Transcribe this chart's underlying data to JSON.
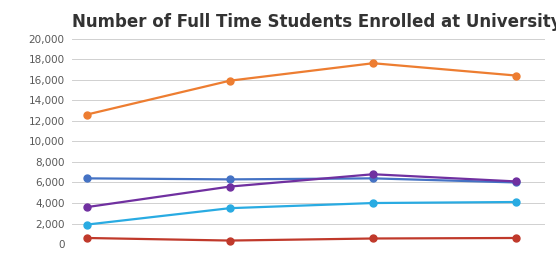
{
  "title": "Number of Full Time Students Enrolled at University",
  "x_values": [
    0,
    1,
    2,
    3
  ],
  "series": [
    {
      "color": "#ED7D31",
      "marker": "o",
      "values": [
        12600,
        15900,
        17600,
        16400
      ]
    },
    {
      "color": "#4472C4",
      "marker": "o",
      "values": [
        6400,
        6300,
        6400,
        6000
      ]
    },
    {
      "color": "#7030A0",
      "marker": "o",
      "values": [
        3600,
        5600,
        6800,
        6100
      ]
    },
    {
      "color": "#29ABE2",
      "marker": "o",
      "values": [
        1900,
        3500,
        4000,
        4100
      ]
    },
    {
      "color": "#C0392B",
      "marker": "o",
      "values": [
        600,
        350,
        550,
        600
      ]
    }
  ],
  "ylim": [
    0,
    20000
  ],
  "yticks": [
    0,
    2000,
    4000,
    6000,
    8000,
    10000,
    12000,
    14000,
    16000,
    18000,
    20000
  ],
  "background_color": "#FFFFFF",
  "grid_color": "#D0D0D0",
  "title_fontsize": 12,
  "title_fontweight": "bold",
  "line_width": 1.6,
  "marker_size": 5
}
